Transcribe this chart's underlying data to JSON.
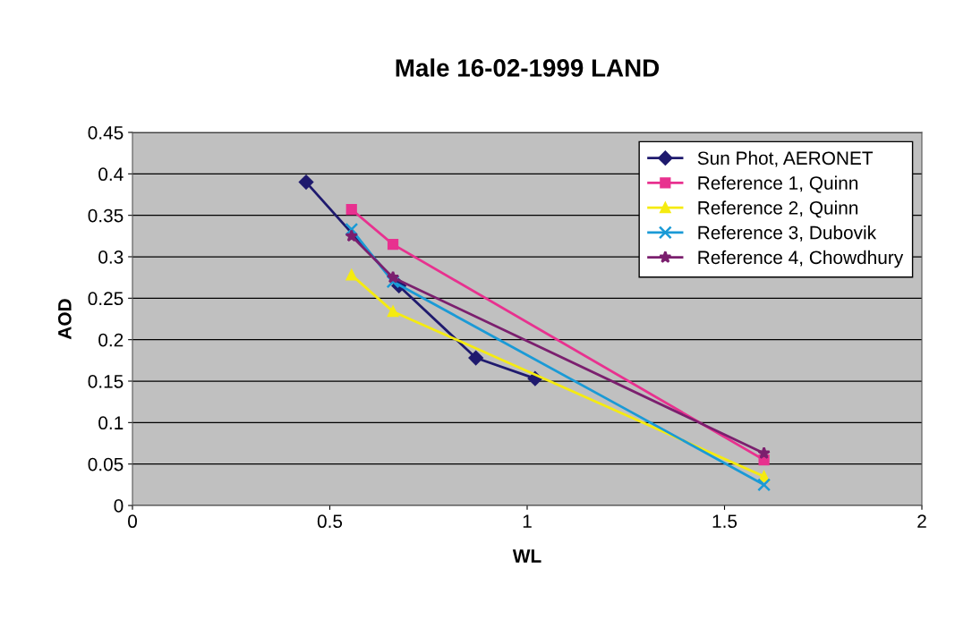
{
  "chart_data": {
    "type": "line",
    "title": "Male 16-02-1999 LAND",
    "xlabel": "WL",
    "ylabel": "AOD",
    "xlim": [
      0,
      2
    ],
    "xticks": [
      0,
      0.5,
      1,
      1.5,
      2
    ],
    "ylim": [
      0,
      0.45
    ],
    "yticks": [
      0,
      0.05,
      0.1,
      0.15,
      0.2,
      0.25,
      0.3,
      0.35,
      0.4,
      0.45
    ],
    "grid": "y",
    "legend": "top right",
    "series": [
      {
        "name": "Sun Phot, AERONET",
        "color": "#1f1a6e",
        "marker": "diamond",
        "x": [
          0.44,
          0.675,
          0.87,
          1.02
        ],
        "values": [
          0.39,
          0.265,
          0.178,
          0.153
        ]
      },
      {
        "name": "Reference 1, Quinn",
        "color": "#e8318f",
        "marker": "square",
        "x": [
          0.555,
          0.66,
          1.6
        ],
        "values": [
          0.357,
          0.315,
          0.055
        ]
      },
      {
        "name": "Reference 2, Quinn",
        "color": "#f5eb10",
        "marker": "triangle",
        "x": [
          0.555,
          0.66,
          1.6
        ],
        "values": [
          0.278,
          0.234,
          0.035
        ]
      },
      {
        "name": "Reference 3, Dubovik",
        "color": "#1a9ad6",
        "marker": "cross",
        "x": [
          0.555,
          0.66,
          1.6
        ],
        "values": [
          0.333,
          0.27,
          0.025
        ]
      },
      {
        "name": "Reference 4, Chowdhury",
        "color": "#7b1f6e",
        "marker": "star",
        "x": [
          0.555,
          0.66,
          1.6
        ],
        "values": [
          0.325,
          0.275,
          0.063
        ]
      }
    ]
  }
}
